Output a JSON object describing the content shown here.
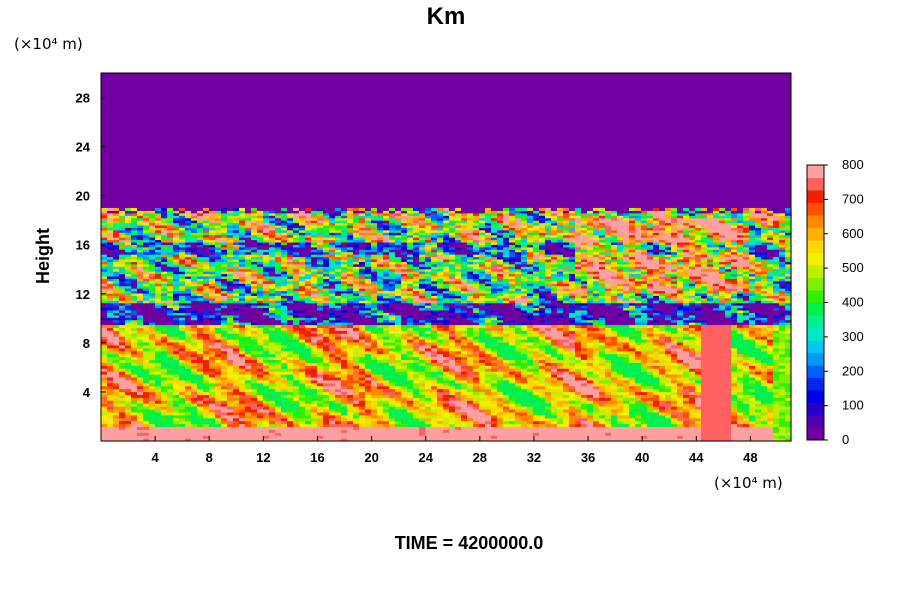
{
  "chart_data": {
    "type": "heatmap",
    "title": "Km",
    "ylabel": "Height",
    "y_unit": "(×10⁴ m)",
    "x_unit": "(×10⁴ m)",
    "time_label": "TIME = 4200000.0",
    "xlim": [
      0,
      51
    ],
    "ylim": [
      0,
      30
    ],
    "x_ticks": [
      "4",
      "8",
      "12",
      "16",
      "20",
      "24",
      "28",
      "32",
      "36",
      "40",
      "44",
      "48"
    ],
    "y_ticks": [
      "4",
      "8",
      "12",
      "16",
      "20",
      "24",
      "28"
    ],
    "colorbar": {
      "min": 0,
      "max": 800,
      "ticks": [
        "0",
        "100",
        "200",
        "300",
        "400",
        "500",
        "600",
        "700",
        "800"
      ],
      "palette": [
        "#7000a0",
        "#5000b0",
        "#2800c8",
        "#0000e0",
        "#0028f0",
        "#0060ff",
        "#0098ff",
        "#00c8f0",
        "#00e8c8",
        "#00f090",
        "#00f050",
        "#30f000",
        "#80f000",
        "#c0f000",
        "#f0f000",
        "#ffd800",
        "#ffb000",
        "#ff8800",
        "#ff5000",
        "#f02000",
        "#ff6060",
        "#ffa0a0"
      ]
    },
    "regions": [
      {
        "name": "upper-calm-layer",
        "y_range": [
          19,
          30
        ],
        "level": 0
      },
      {
        "name": "upper-turbulent-band",
        "y_range": [
          9.5,
          19
        ],
        "level": "mixed 0-800"
      },
      {
        "name": "lower-turbulent-layer",
        "y_range": [
          0,
          9.5
        ],
        "level": "mixed 400-800"
      }
    ]
  }
}
